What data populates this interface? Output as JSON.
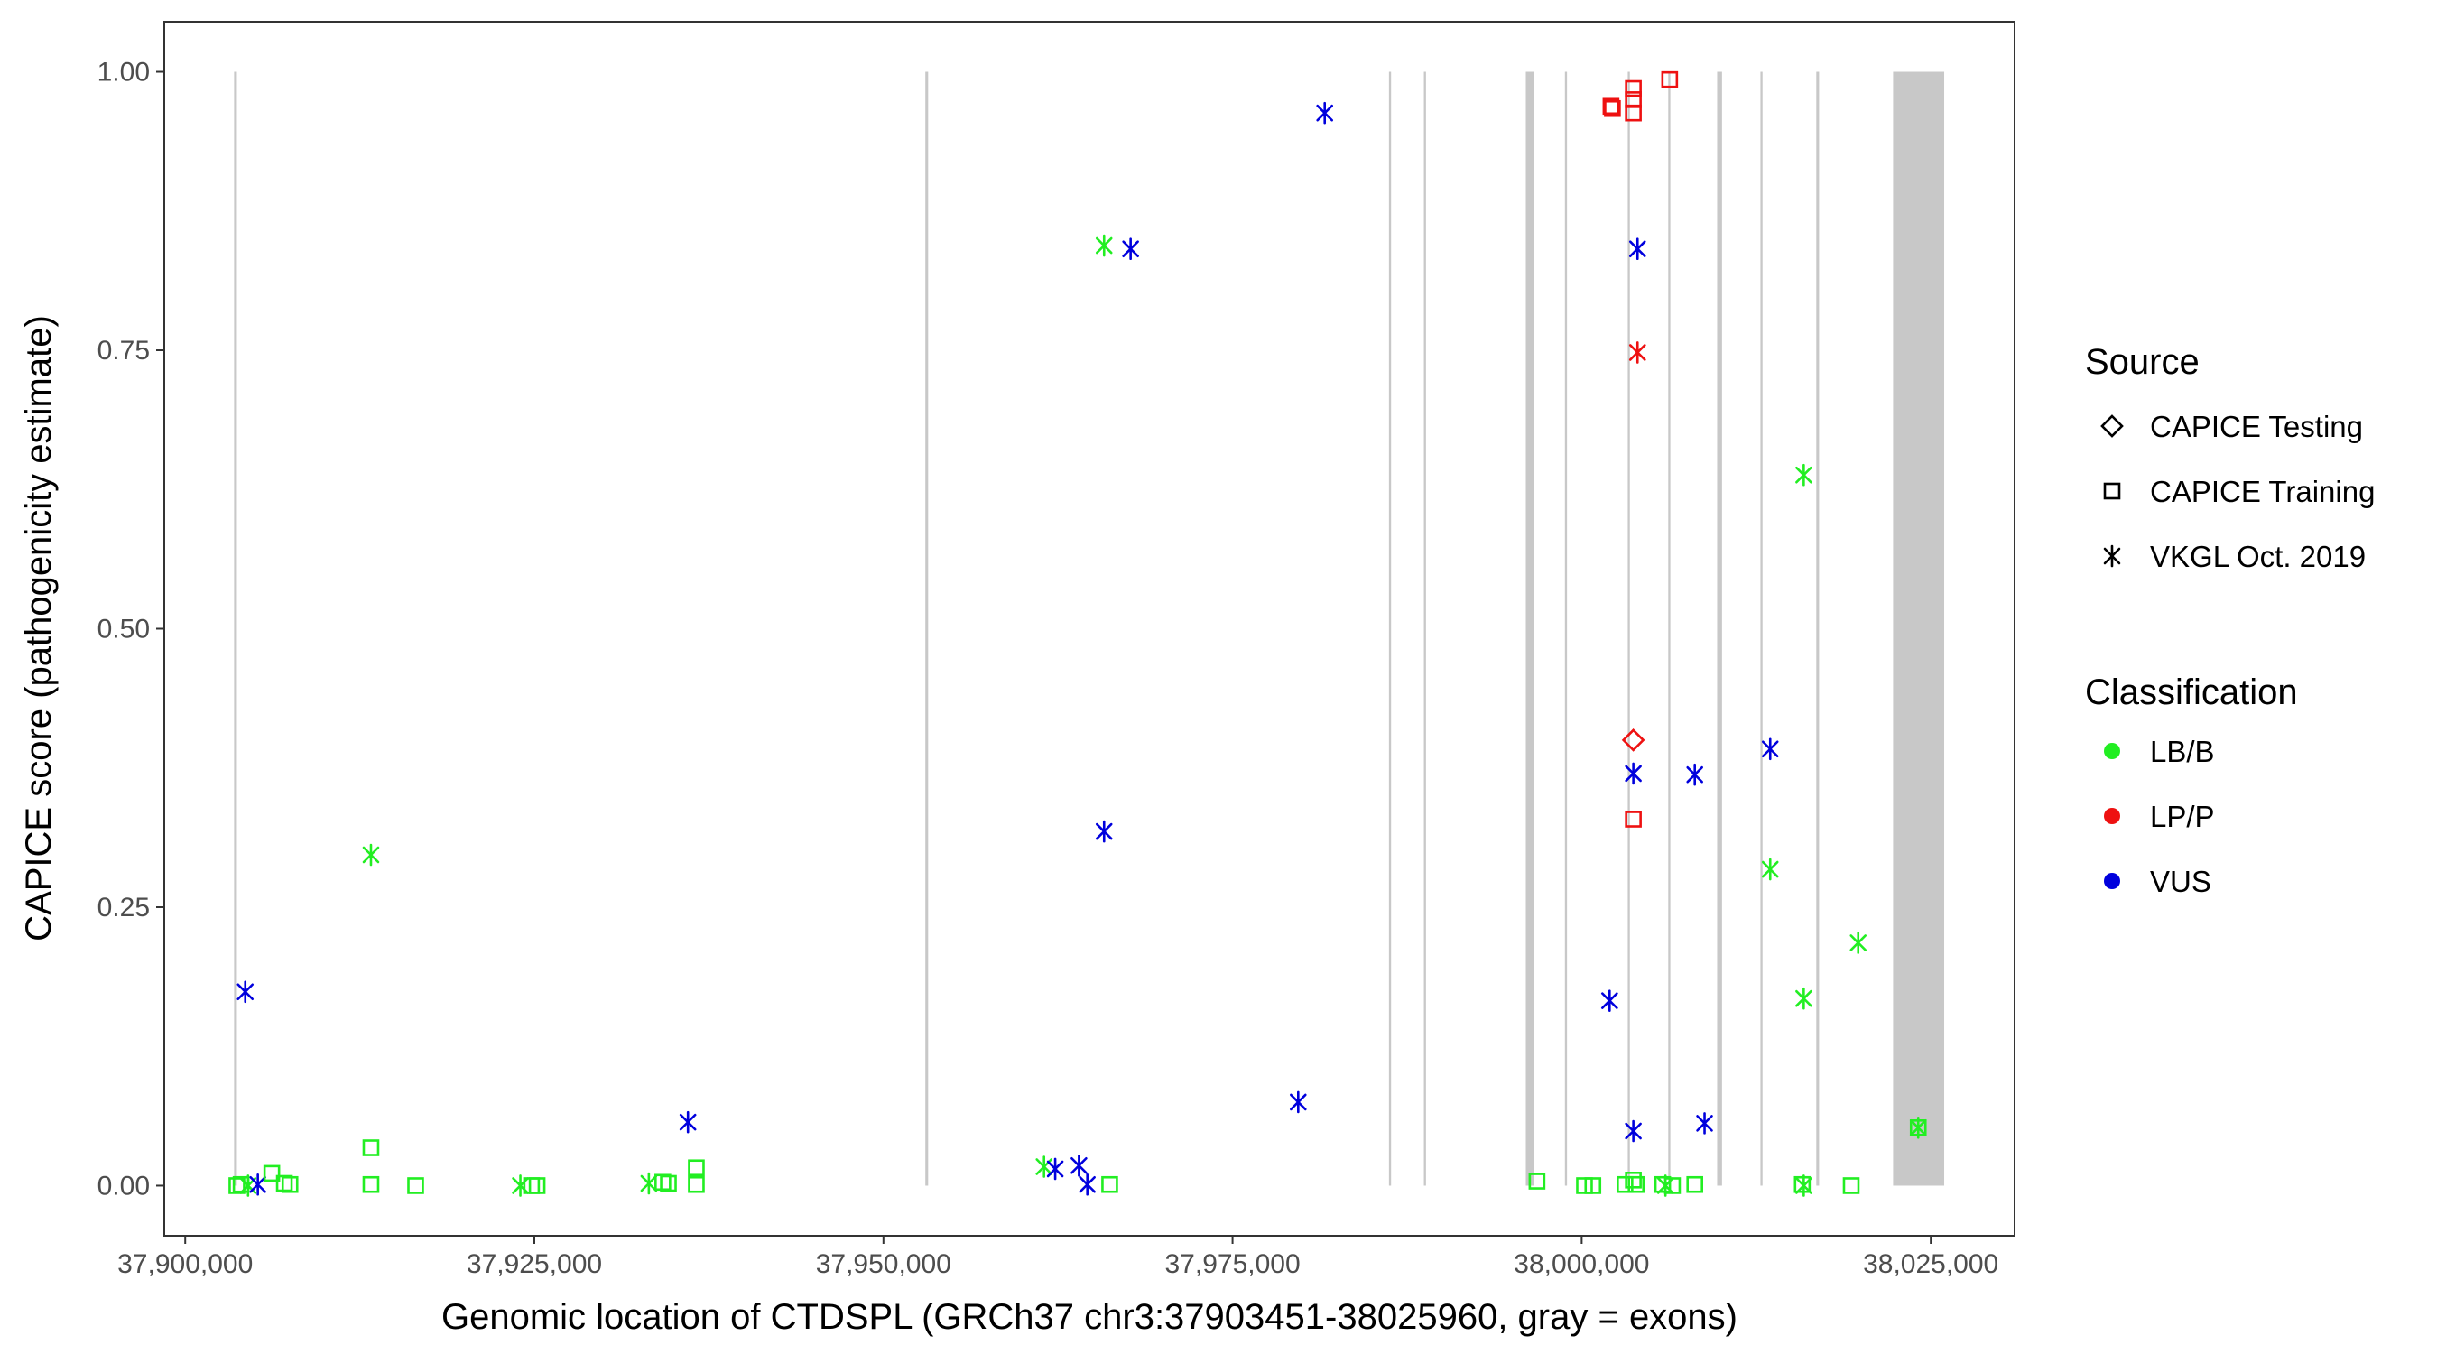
{
  "chart_data": {
    "type": "scatter",
    "xlabel": "Genomic location of CTDSPL (GRCh37 chr3:37903451-38025960, gray = exons)",
    "ylabel": "CAPICE score (pathogenicity estimate)",
    "xlim": [
      37898500,
      38031000
    ],
    "ylim": [
      -0.045,
      1.045
    ],
    "x_ticks": [
      37900000,
      37925000,
      37950000,
      37975000,
      38000000,
      38025000
    ],
    "x_tick_labels": [
      "37,900,000",
      "37,925,000",
      "37,950,000",
      "37,975,000",
      "38,000,000",
      "38,025,000"
    ],
    "y_ticks": [
      0,
      0.25,
      0.5,
      0.75,
      1.0
    ],
    "y_tick_labels": [
      "0.00",
      "0.25",
      "0.50",
      "0.75",
      "1.00"
    ],
    "grid": false,
    "exons": [
      [
        37903500,
        37903700
      ],
      [
        37953000,
        37953200
      ],
      [
        37986200,
        37986350
      ],
      [
        37988700,
        37988850
      ],
      [
        37996000,
        37996600
      ],
      [
        37998800,
        37998950
      ],
      [
        38003300,
        38003450
      ],
      [
        38006200,
        38006350
      ],
      [
        38009700,
        38010050
      ],
      [
        38012800,
        38012950
      ],
      [
        38016800,
        38017000
      ],
      [
        38022300,
        38025960
      ]
    ],
    "legend": {
      "position": "right",
      "source_title": "Source",
      "source": [
        {
          "label": "CAPICE Testing",
          "shape": "diamond"
        },
        {
          "label": "CAPICE Training",
          "shape": "square"
        },
        {
          "label": "VKGL Oct. 2019",
          "shape": "asterisk"
        }
      ],
      "classification_title": "Classification",
      "classification": [
        {
          "label": "LB/B",
          "color": "#22ee22"
        },
        {
          "label": "LP/P",
          "color": "#ee1111"
        },
        {
          "label": "VUS",
          "color": "#0000dd"
        }
      ]
    },
    "colors": {
      "LB/B": "#22ee22",
      "LP/P": "#ee1111",
      "VUS": "#0000dd"
    },
    "points": [
      {
        "x": 37903700,
        "y": 0.0,
        "shape": "square",
        "class": "LB/B"
      },
      {
        "x": 37904000,
        "y": 0.001,
        "shape": "square",
        "class": "LB/B"
      },
      {
        "x": 37904500,
        "y": 0.0,
        "shape": "asterisk",
        "class": "LB/B"
      },
      {
        "x": 37905200,
        "y": 0.001,
        "shape": "asterisk",
        "class": "VUS"
      },
      {
        "x": 37904300,
        "y": 0.174,
        "shape": "asterisk",
        "class": "VUS"
      },
      {
        "x": 37906200,
        "y": 0.011,
        "shape": "square",
        "class": "LB/B"
      },
      {
        "x": 37907100,
        "y": 0.002,
        "shape": "square",
        "class": "LB/B"
      },
      {
        "x": 37907500,
        "y": 0.001,
        "shape": "square",
        "class": "LB/B"
      },
      {
        "x": 37913300,
        "y": 0.297,
        "shape": "asterisk",
        "class": "LB/B"
      },
      {
        "x": 37913300,
        "y": 0.034,
        "shape": "square",
        "class": "LB/B"
      },
      {
        "x": 37913300,
        "y": 0.001,
        "shape": "square",
        "class": "LB/B"
      },
      {
        "x": 37916500,
        "y": 0.0,
        "shape": "square",
        "class": "LB/B"
      },
      {
        "x": 37924000,
        "y": 0.0,
        "shape": "asterisk",
        "class": "LB/B"
      },
      {
        "x": 37924800,
        "y": 0.0,
        "shape": "square",
        "class": "LB/B"
      },
      {
        "x": 37925200,
        "y": 0.0,
        "shape": "square",
        "class": "LB/B"
      },
      {
        "x": 37933200,
        "y": 0.002,
        "shape": "asterisk",
        "class": "LB/B"
      },
      {
        "x": 37934200,
        "y": 0.003,
        "shape": "square",
        "class": "LB/B"
      },
      {
        "x": 37934600,
        "y": 0.002,
        "shape": "square",
        "class": "LB/B"
      },
      {
        "x": 37936000,
        "y": 0.057,
        "shape": "asterisk",
        "class": "VUS"
      },
      {
        "x": 37936600,
        "y": 0.016,
        "shape": "square",
        "class": "LB/B"
      },
      {
        "x": 37936600,
        "y": 0.001,
        "shape": "square",
        "class": "LB/B"
      },
      {
        "x": 37961500,
        "y": 0.017,
        "shape": "asterisk",
        "class": "LB/B"
      },
      {
        "x": 37962300,
        "y": 0.015,
        "shape": "asterisk",
        "class": "VUS"
      },
      {
        "x": 37964000,
        "y": 0.018,
        "shape": "asterisk",
        "class": "VUS"
      },
      {
        "x": 37964600,
        "y": 0.001,
        "shape": "asterisk",
        "class": "VUS"
      },
      {
        "x": 37966200,
        "y": 0.001,
        "shape": "square",
        "class": "LB/B"
      },
      {
        "x": 37965800,
        "y": 0.844,
        "shape": "asterisk",
        "class": "LB/B"
      },
      {
        "x": 37967700,
        "y": 0.841,
        "shape": "asterisk",
        "class": "VUS"
      },
      {
        "x": 37965800,
        "y": 0.318,
        "shape": "asterisk",
        "class": "VUS"
      },
      {
        "x": 37979700,
        "y": 0.075,
        "shape": "asterisk",
        "class": "VUS"
      },
      {
        "x": 37981600,
        "y": 0.963,
        "shape": "asterisk",
        "class": "VUS"
      },
      {
        "x": 37996800,
        "y": 0.004,
        "shape": "square",
        "class": "LB/B"
      },
      {
        "x": 38000200,
        "y": 0.0,
        "shape": "square",
        "class": "LB/B"
      },
      {
        "x": 38000800,
        "y": 0.0,
        "shape": "square",
        "class": "LB/B"
      },
      {
        "x": 38002000,
        "y": 0.166,
        "shape": "asterisk",
        "class": "VUS"
      },
      {
        "x": 38002100,
        "y": 0.969,
        "shape": "square",
        "class": "LP/P"
      },
      {
        "x": 38002200,
        "y": 0.967,
        "shape": "square",
        "class": "LP/P"
      },
      {
        "x": 38003100,
        "y": 0.001,
        "shape": "square",
        "class": "LB/B"
      },
      {
        "x": 38003700,
        "y": 0.985,
        "shape": "square",
        "class": "LP/P"
      },
      {
        "x": 38003700,
        "y": 0.975,
        "shape": "square",
        "class": "LP/P"
      },
      {
        "x": 38003700,
        "y": 0.963,
        "shape": "square",
        "class": "LP/P"
      },
      {
        "x": 38003700,
        "y": 0.4,
        "shape": "diamond",
        "class": "LP/P"
      },
      {
        "x": 38003700,
        "y": 0.329,
        "shape": "square",
        "class": "LP/P"
      },
      {
        "x": 38003700,
        "y": 0.37,
        "shape": "asterisk",
        "class": "VUS"
      },
      {
        "x": 38003700,
        "y": 0.049,
        "shape": "asterisk",
        "class": "VUS"
      },
      {
        "x": 38003700,
        "y": 0.005,
        "shape": "square",
        "class": "LB/B"
      },
      {
        "x": 38003900,
        "y": 0.001,
        "shape": "square",
        "class": "LB/B"
      },
      {
        "x": 38004000,
        "y": 0.841,
        "shape": "asterisk",
        "class": "VUS"
      },
      {
        "x": 38004000,
        "y": 0.748,
        "shape": "asterisk",
        "class": "LP/P"
      },
      {
        "x": 38005800,
        "y": 0.001,
        "shape": "square",
        "class": "LB/B"
      },
      {
        "x": 38006000,
        "y": 0.0,
        "shape": "asterisk",
        "class": "LB/B"
      },
      {
        "x": 38006500,
        "y": 0.0,
        "shape": "square",
        "class": "LB/B"
      },
      {
        "x": 38006300,
        "y": 0.993,
        "shape": "square",
        "class": "LP/P"
      },
      {
        "x": 38008100,
        "y": 0.369,
        "shape": "asterisk",
        "class": "VUS"
      },
      {
        "x": 38008100,
        "y": 0.001,
        "shape": "square",
        "class": "LB/B"
      },
      {
        "x": 38008800,
        "y": 0.056,
        "shape": "asterisk",
        "class": "VUS"
      },
      {
        "x": 38013500,
        "y": 0.392,
        "shape": "asterisk",
        "class": "VUS"
      },
      {
        "x": 38013500,
        "y": 0.284,
        "shape": "asterisk",
        "class": "LB/B"
      },
      {
        "x": 38015900,
        "y": 0.638,
        "shape": "asterisk",
        "class": "LB/B"
      },
      {
        "x": 38015900,
        "y": 0.168,
        "shape": "asterisk",
        "class": "LB/B"
      },
      {
        "x": 38015800,
        "y": 0.001,
        "shape": "square",
        "class": "LB/B"
      },
      {
        "x": 38015900,
        "y": 0.0,
        "shape": "asterisk",
        "class": "LB/B"
      },
      {
        "x": 38019300,
        "y": 0.0,
        "shape": "square",
        "class": "LB/B"
      },
      {
        "x": 38019800,
        "y": 0.218,
        "shape": "asterisk",
        "class": "LB/B"
      },
      {
        "x": 38024100,
        "y": 0.052,
        "shape": "asterisk",
        "class": "LB/B"
      },
      {
        "x": 38024100,
        "y": 0.052,
        "shape": "square",
        "class": "LB/B"
      }
    ]
  }
}
